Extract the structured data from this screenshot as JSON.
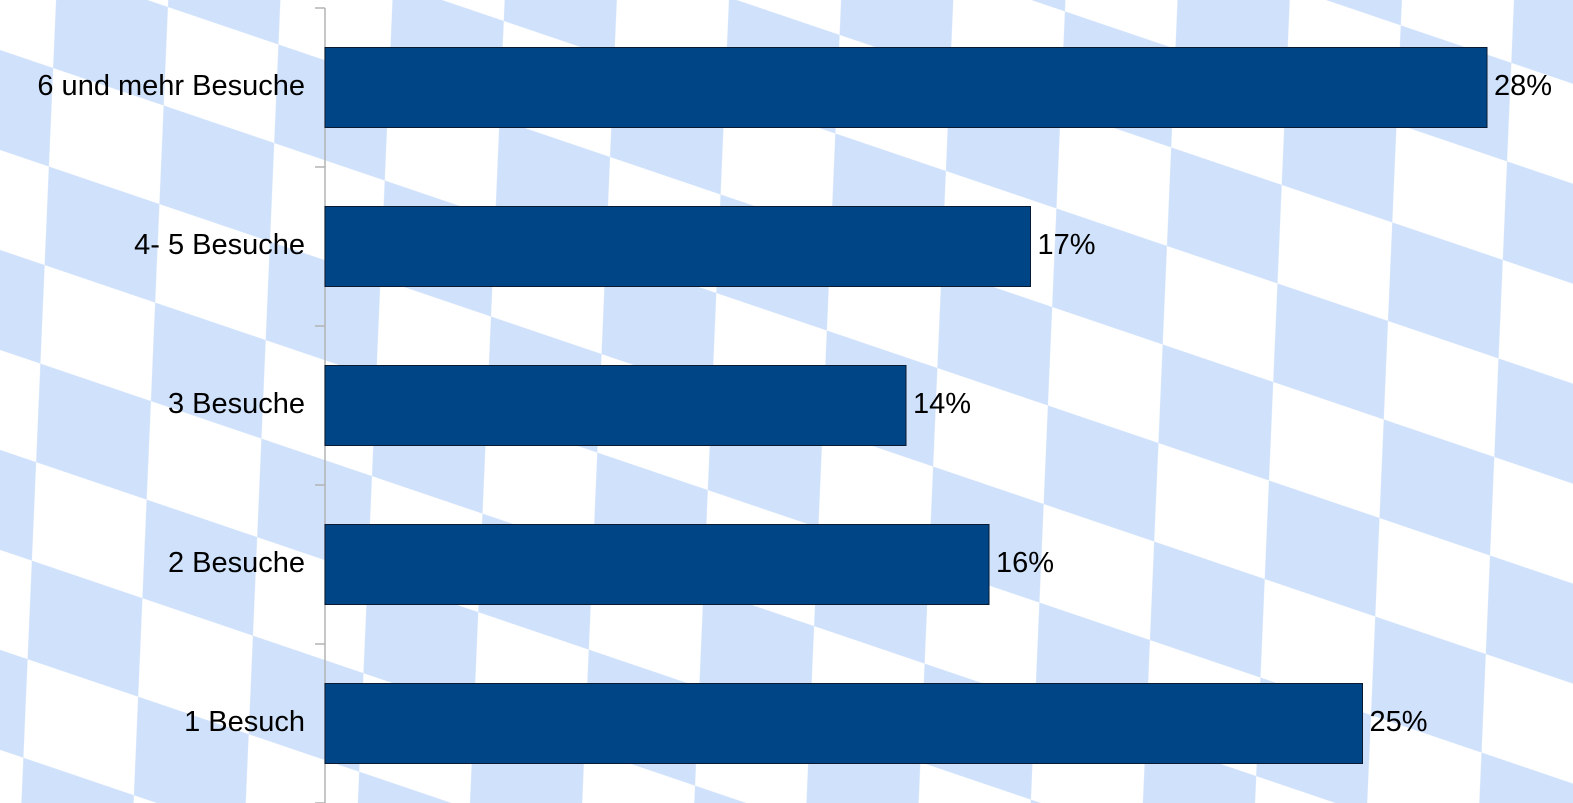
{
  "chart_data": {
    "type": "bar",
    "orientation": "horizontal",
    "categories": [
      "6 und mehr Besuche",
      "4- 5 Besuche",
      "3 Besuche",
      "2 Besuche",
      "1 Besuch"
    ],
    "values": [
      28,
      17,
      14,
      16,
      25
    ],
    "value_labels": [
      "28%",
      "17%",
      "14%",
      "16%",
      "25%"
    ],
    "color": "#004586",
    "xlim": [
      0,
      28
    ]
  }
}
